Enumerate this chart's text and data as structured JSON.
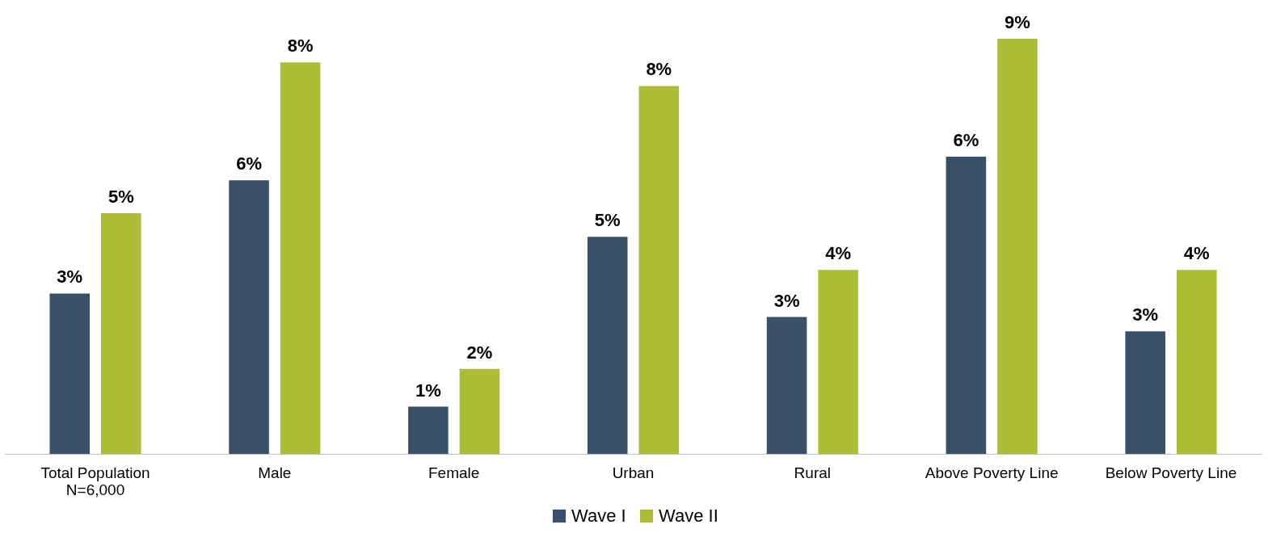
{
  "chart_data": {
    "type": "bar",
    "categories": [
      "Total Population\nN=6,000",
      "Male",
      "Female",
      "Urban",
      "Rural",
      "Above Poverty Line",
      "Below Poverty Line"
    ],
    "series": [
      {
        "name": "Wave I",
        "color": "#3a5069",
        "values": [
          3.4,
          5.8,
          1.0,
          4.6,
          2.9,
          6.3,
          2.6
        ],
        "value_labels": [
          "3%",
          "6%",
          "1%",
          "5%",
          "3%",
          "6%",
          "3%"
        ]
      },
      {
        "name": "Wave II",
        "color": "#adbe36",
        "values": [
          5.1,
          8.3,
          1.8,
          7.8,
          3.9,
          8.8,
          3.9
        ],
        "value_labels": [
          "5%",
          "8%",
          "2%",
          "8%",
          "4%",
          "9%",
          "4%"
        ]
      }
    ],
    "grid": false,
    "legend": "bottom"
  }
}
